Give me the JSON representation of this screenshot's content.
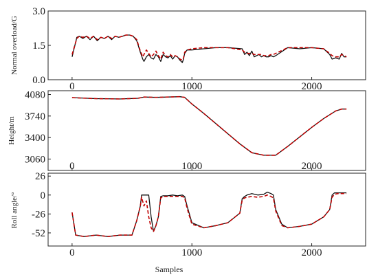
{
  "chart_data": [
    {
      "type": "line",
      "ylabel": "Normal overload/G",
      "xlim": [
        -200,
        2450
      ],
      "ylim": [
        0,
        3.0
      ],
      "xticks": [
        0,
        1000,
        2000
      ],
      "xtick_labels": [
        "0",
        "1000",
        "2000"
      ],
      "yticks": [
        0,
        1.5,
        3.0
      ],
      "ytick_labels": [
        "0.0",
        "1.5",
        "3.0"
      ],
      "series": [
        {
          "color": "#111111",
          "style": "solid",
          "x": [
            0,
            40,
            60,
            90,
            120,
            150,
            180,
            210,
            240,
            270,
            300,
            330,
            360,
            390,
            420,
            450,
            480,
            510,
            540,
            570,
            590,
            600,
            620,
            640,
            660,
            680,
            700,
            720,
            740,
            760,
            780,
            800,
            820,
            840,
            860,
            880,
            900,
            920,
            930,
            940,
            960,
            1000,
            1100,
            1200,
            1300,
            1420,
            1440,
            1460,
            1480,
            1500,
            1520,
            1540,
            1560,
            1580,
            1600,
            1620,
            1640,
            1660,
            1680,
            1700,
            1800,
            1900,
            2000,
            2100,
            2150,
            2170,
            2200,
            2230,
            2250,
            2270,
            2290
          ],
          "y": [
            1.0,
            1.85,
            1.9,
            1.8,
            1.9,
            1.75,
            1.9,
            1.7,
            1.85,
            1.8,
            1.9,
            1.75,
            1.9,
            1.85,
            1.9,
            1.95,
            1.95,
            1.9,
            1.7,
            1.2,
            0.9,
            0.8,
            1.0,
            1.1,
            0.95,
            0.9,
            1.1,
            1.0,
            0.8,
            1.1,
            1.0,
            0.95,
            1.05,
            0.9,
            1.05,
            1.0,
            0.85,
            0.75,
            0.9,
            1.15,
            1.3,
            1.3,
            1.35,
            1.4,
            1.4,
            1.35,
            1.1,
            1.2,
            1.05,
            1.25,
            1.0,
            1.05,
            1.1,
            1.0,
            1.05,
            1.0,
            1.0,
            1.05,
            1.0,
            1.05,
            1.4,
            1.35,
            1.4,
            1.35,
            1.1,
            0.9,
            0.95,
            0.9,
            1.15,
            1.0,
            1.0
          ]
        },
        {
          "color": "#c00000",
          "style": "dashed",
          "x": [
            0,
            40,
            60,
            90,
            120,
            150,
            180,
            210,
            240,
            270,
            300,
            330,
            360,
            390,
            420,
            450,
            480,
            510,
            540,
            570,
            590,
            600,
            620,
            640,
            660,
            680,
            700,
            720,
            740,
            760,
            780,
            800,
            820,
            840,
            860,
            880,
            900,
            920,
            930,
            940,
            960,
            1000,
            1100,
            1200,
            1300,
            1420,
            1440,
            1460,
            1480,
            1500,
            1520,
            1540,
            1560,
            1580,
            1600,
            1620,
            1640,
            1660,
            1680,
            1700,
            1800,
            1900,
            2000,
            2100,
            2150,
            2170,
            2200,
            2230,
            2250,
            2270,
            2290
          ],
          "y": [
            1.1,
            1.8,
            1.9,
            1.85,
            1.9,
            1.8,
            1.9,
            1.75,
            1.85,
            1.8,
            1.9,
            1.8,
            1.9,
            1.85,
            1.9,
            1.95,
            1.95,
            1.9,
            1.75,
            1.25,
            1.0,
            1.1,
            1.3,
            1.15,
            1.0,
            1.1,
            1.25,
            1.05,
            0.9,
            1.2,
            1.05,
            1.0,
            1.1,
            1.0,
            1.05,
            1.0,
            0.9,
            0.85,
            0.95,
            1.2,
            1.3,
            1.35,
            1.4,
            1.4,
            1.4,
            1.3,
            1.2,
            1.15,
            1.15,
            1.15,
            1.1,
            1.1,
            1.1,
            1.1,
            1.05,
            1.05,
            1.05,
            1.1,
            1.1,
            1.15,
            1.4,
            1.4,
            1.4,
            1.35,
            1.15,
            1.05,
            1.0,
            1.0,
            1.1,
            1.05,
            1.0
          ]
        }
      ]
    },
    {
      "type": "line",
      "ylabel": "Height/m",
      "xlim": [
        -200,
        2450
      ],
      "ylim": [
        2880,
        4140
      ],
      "xticks": [
        0,
        1000,
        2000
      ],
      "xtick_labels": [
        "0",
        "1000",
        "2000"
      ],
      "yticks": [
        3060,
        3400,
        3740,
        4080
      ],
      "ytick_labels": [
        "3060",
        "3400",
        "3740",
        "4080"
      ],
      "series": [
        {
          "color": "#111111",
          "style": "solid",
          "x": [
            0,
            200,
            400,
            550,
            600,
            700,
            800,
            900,
            940,
            1000,
            1100,
            1200,
            1300,
            1400,
            1500,
            1600,
            1700,
            1800,
            1900,
            2000,
            2100,
            2200,
            2250,
            2290
          ],
          "y": [
            4030,
            4015,
            4010,
            4020,
            4040,
            4035,
            4040,
            4045,
            4035,
            3930,
            3780,
            3620,
            3460,
            3300,
            3160,
            3120,
            3120,
            3260,
            3410,
            3560,
            3700,
            3820,
            3850,
            3850
          ]
        },
        {
          "color": "#c00000",
          "style": "dashed",
          "x": [
            0,
            200,
            400,
            550,
            600,
            700,
            800,
            900,
            940,
            1000,
            1100,
            1200,
            1300,
            1400,
            1500,
            1600,
            1700,
            1800,
            1900,
            2000,
            2100,
            2200,
            2250,
            2290
          ],
          "y": [
            4030,
            4015,
            4010,
            4020,
            4040,
            4035,
            4040,
            4045,
            4035,
            3930,
            3780,
            3620,
            3460,
            3300,
            3160,
            3120,
            3120,
            3260,
            3410,
            3560,
            3700,
            3820,
            3850,
            3850
          ]
        }
      ]
    },
    {
      "type": "line",
      "ylabel": "Roll angle/°",
      "xlabel": "Samples",
      "xlim": [
        -200,
        2450
      ],
      "ylim": [
        -70,
        30
      ],
      "xticks": [
        0,
        1000,
        2000
      ],
      "xtick_labels": [
        "0",
        "1000",
        "2000"
      ],
      "yticks": [
        -52,
        -26,
        0,
        26
      ],
      "ytick_labels": [
        "-52",
        "-26",
        "0",
        "26"
      ],
      "series": [
        {
          "color": "#111111",
          "style": "solid",
          "x": [
            0,
            30,
            100,
            200,
            300,
            400,
            500,
            540,
            570,
            580,
            600,
            620,
            640,
            660,
            680,
            700,
            720,
            740,
            760,
            800,
            840,
            880,
            920,
            940,
            960,
            1000,
            1100,
            1200,
            1300,
            1400,
            1420,
            1440,
            1460,
            1500,
            1550,
            1600,
            1630,
            1660,
            1680,
            1700,
            1750,
            1800,
            1900,
            2000,
            2100,
            2150,
            2170,
            2190,
            2220,
            2290
          ],
          "y": [
            -24,
            -55,
            -57,
            -55,
            -57,
            -55,
            -55,
            -35,
            -15,
            0,
            0,
            0,
            0,
            -30,
            -50,
            -42,
            -30,
            -2,
            -1,
            -1,
            0,
            -1,
            0,
            -2,
            -15,
            -38,
            -45,
            -42,
            -38,
            -25,
            -5,
            -2,
            0,
            2,
            0,
            1,
            4,
            2,
            0,
            -20,
            -40,
            -45,
            -43,
            -40,
            -30,
            -20,
            0,
            3,
            3,
            3
          ]
        },
        {
          "color": "#c00000",
          "style": "dashed",
          "x": [
            0,
            30,
            100,
            200,
            300,
            400,
            500,
            540,
            570,
            580,
            600,
            620,
            640,
            660,
            680,
            700,
            720,
            740,
            760,
            800,
            840,
            880,
            920,
            940,
            960,
            1000,
            1100,
            1200,
            1300,
            1400,
            1420,
            1440,
            1460,
            1500,
            1550,
            1600,
            1630,
            1660,
            1680,
            1700,
            1750,
            1800,
            1900,
            2000,
            2100,
            2150,
            2170,
            2190,
            2220,
            2290
          ],
          "y": [
            -24,
            -55,
            -57,
            -55,
            -57,
            -55,
            -55,
            -35,
            -15,
            -3,
            -15,
            -8,
            -30,
            -45,
            -50,
            -42,
            -30,
            -4,
            -2,
            -2,
            -2,
            -2,
            -2,
            -4,
            -18,
            -40,
            -45,
            -42,
            -38,
            -25,
            -7,
            -4,
            -3,
            -2,
            -3,
            -2,
            0,
            -2,
            -4,
            -22,
            -42,
            -45,
            -43,
            -40,
            -30,
            -20,
            -3,
            1,
            2,
            2
          ]
        }
      ]
    }
  ]
}
